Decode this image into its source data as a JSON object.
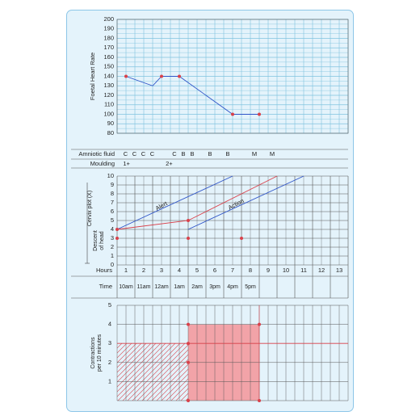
{
  "chart_data": {
    "type": "partograph",
    "fhr": {
      "ylabel": "Foetal Heart Rate",
      "ylim": [
        80,
        200
      ],
      "yticks": [
        "80",
        "90",
        "100",
        "110",
        "120",
        "130",
        "140",
        "150",
        "160",
        "170",
        "180",
        "190",
        "200"
      ],
      "series": [
        {
          "x": 0.5,
          "y": 140,
          "marker": true
        },
        {
          "x": 2.0,
          "y": 130,
          "marker": false
        },
        {
          "x": 2.5,
          "y": 140,
          "marker": true
        },
        {
          "x": 3.5,
          "y": 140,
          "marker": true
        },
        {
          "x": 6.5,
          "y": 100,
          "marker": true
        },
        {
          "x": 8.0,
          "y": 100,
          "marker": true
        }
      ]
    },
    "amniotic": {
      "label": "Amniotic fluid",
      "entries": [
        {
          "x": 0.25,
          "text": "C"
        },
        {
          "x": 0.75,
          "text": "C"
        },
        {
          "x": 1.25,
          "text": "C"
        },
        {
          "x": 1.75,
          "text": "C"
        },
        {
          "x": 3.0,
          "text": "C"
        },
        {
          "x": 3.5,
          "text": "B"
        },
        {
          "x": 4.0,
          "text": "B"
        },
        {
          "x": 5.0,
          "text": "B"
        },
        {
          "x": 6.0,
          "text": "B"
        },
        {
          "x": 7.5,
          "text": "M"
        },
        {
          "x": 8.5,
          "text": "M"
        }
      ]
    },
    "moulding": {
      "label": "Moulding",
      "entries": [
        {
          "x": 0.3,
          "text": "1+"
        },
        {
          "x": 2.7,
          "text": "2+"
        }
      ]
    },
    "cervix": {
      "ylabel": "Cervix plot (X)",
      "descent_label": [
        "Descent",
        "of head"
      ],
      "ylim": [
        0,
        10
      ],
      "yticks": [
        "0",
        "1",
        "2",
        "3",
        "4",
        "5",
        "6",
        "7",
        "8",
        "9",
        "10"
      ],
      "alert_label": "Alert",
      "action_label": "Action",
      "alert_line": [
        [
          0,
          4
        ],
        [
          6.5,
          10
        ]
      ],
      "action_line": [
        [
          4,
          4
        ],
        [
          10.5,
          10
        ]
      ],
      "cervix_series": [
        [
          0,
          4
        ],
        [
          4,
          5
        ],
        [
          9,
          10
        ]
      ],
      "cervix_points": [
        [
          0,
          4
        ],
        [
          4,
          5
        ]
      ],
      "descent_points": [
        [
          0,
          3
        ],
        [
          4,
          3
        ],
        [
          7,
          3
        ]
      ]
    },
    "hours": {
      "label": "Hours",
      "values": [
        "1",
        "2",
        "3",
        "4",
        "5",
        "6",
        "7",
        "8",
        "9",
        "10",
        "11",
        "12",
        "13"
      ]
    },
    "time": {
      "label": "Time",
      "values": [
        "10am",
        "11am",
        "12am",
        "1am",
        "2am",
        "3pm",
        "4pm",
        "5pm"
      ]
    },
    "contractions": {
      "ylabel": "Contractions per 10 minutes",
      "ylim": [
        0,
        5
      ],
      "yticks": [
        "1",
        "2",
        "3",
        "4",
        "5"
      ],
      "hatched": {
        "x": [
          0,
          4
        ],
        "y": [
          0,
          3
        ]
      },
      "filled": {
        "x": [
          4,
          8
        ],
        "y": [
          0,
          4
        ]
      },
      "points": [
        [
          4,
          4
        ],
        [
          8,
          4
        ],
        [
          4,
          3
        ],
        [
          4,
          2
        ],
        [
          4,
          0
        ],
        [
          8,
          0
        ]
      ]
    },
    "colors": {
      "grid": "#7fc3df",
      "card": "#e4f3fb",
      "red": "#d9404a",
      "blue": "#2f55c8",
      "fill": "#f2a3a8"
    }
  }
}
